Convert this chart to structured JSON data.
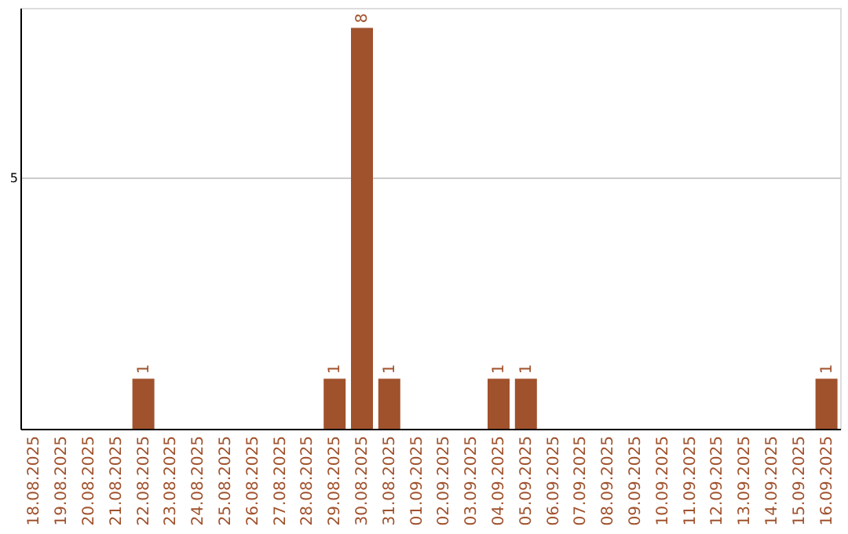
{
  "chart_data": {
    "type": "bar",
    "categories": [
      "18.08.2025",
      "19.08.2025",
      "20.08.2025",
      "21.08.2025",
      "22.08.2025",
      "23.08.2025",
      "24.08.2025",
      "25.08.2025",
      "26.08.2025",
      "27.08.2025",
      "28.08.2025",
      "29.08.2025",
      "30.08.2025",
      "31.08.2025",
      "01.09.2025",
      "02.09.2025",
      "03.09.2025",
      "04.09.2025",
      "05.09.2025",
      "06.09.2025",
      "07.09.2025",
      "08.09.2025",
      "09.09.2025",
      "10.09.2025",
      "11.09.2025",
      "12.09.2025",
      "13.09.2025",
      "14.09.2025",
      "15.09.2025",
      "16.09.2025"
    ],
    "values": [
      0,
      0,
      0,
      0,
      1,
      0,
      0,
      0,
      0,
      0,
      0,
      1,
      8,
      1,
      0,
      0,
      0,
      1,
      1,
      0,
      0,
      0,
      0,
      0,
      0,
      0,
      0,
      0,
      0,
      1
    ],
    "value_labels": [
      null,
      null,
      null,
      null,
      "1",
      null,
      null,
      null,
      null,
      null,
      null,
      "1",
      "8",
      "1",
      null,
      null,
      null,
      "1",
      "1",
      null,
      null,
      null,
      null,
      null,
      null,
      null,
      null,
      null,
      null,
      "1"
    ],
    "color": "#a0522d",
    "ylim": [
      0,
      8.4
    ],
    "yticks": [
      {
        "value": 0,
        "label": null
      },
      5
    ],
    "grid": "y"
  }
}
